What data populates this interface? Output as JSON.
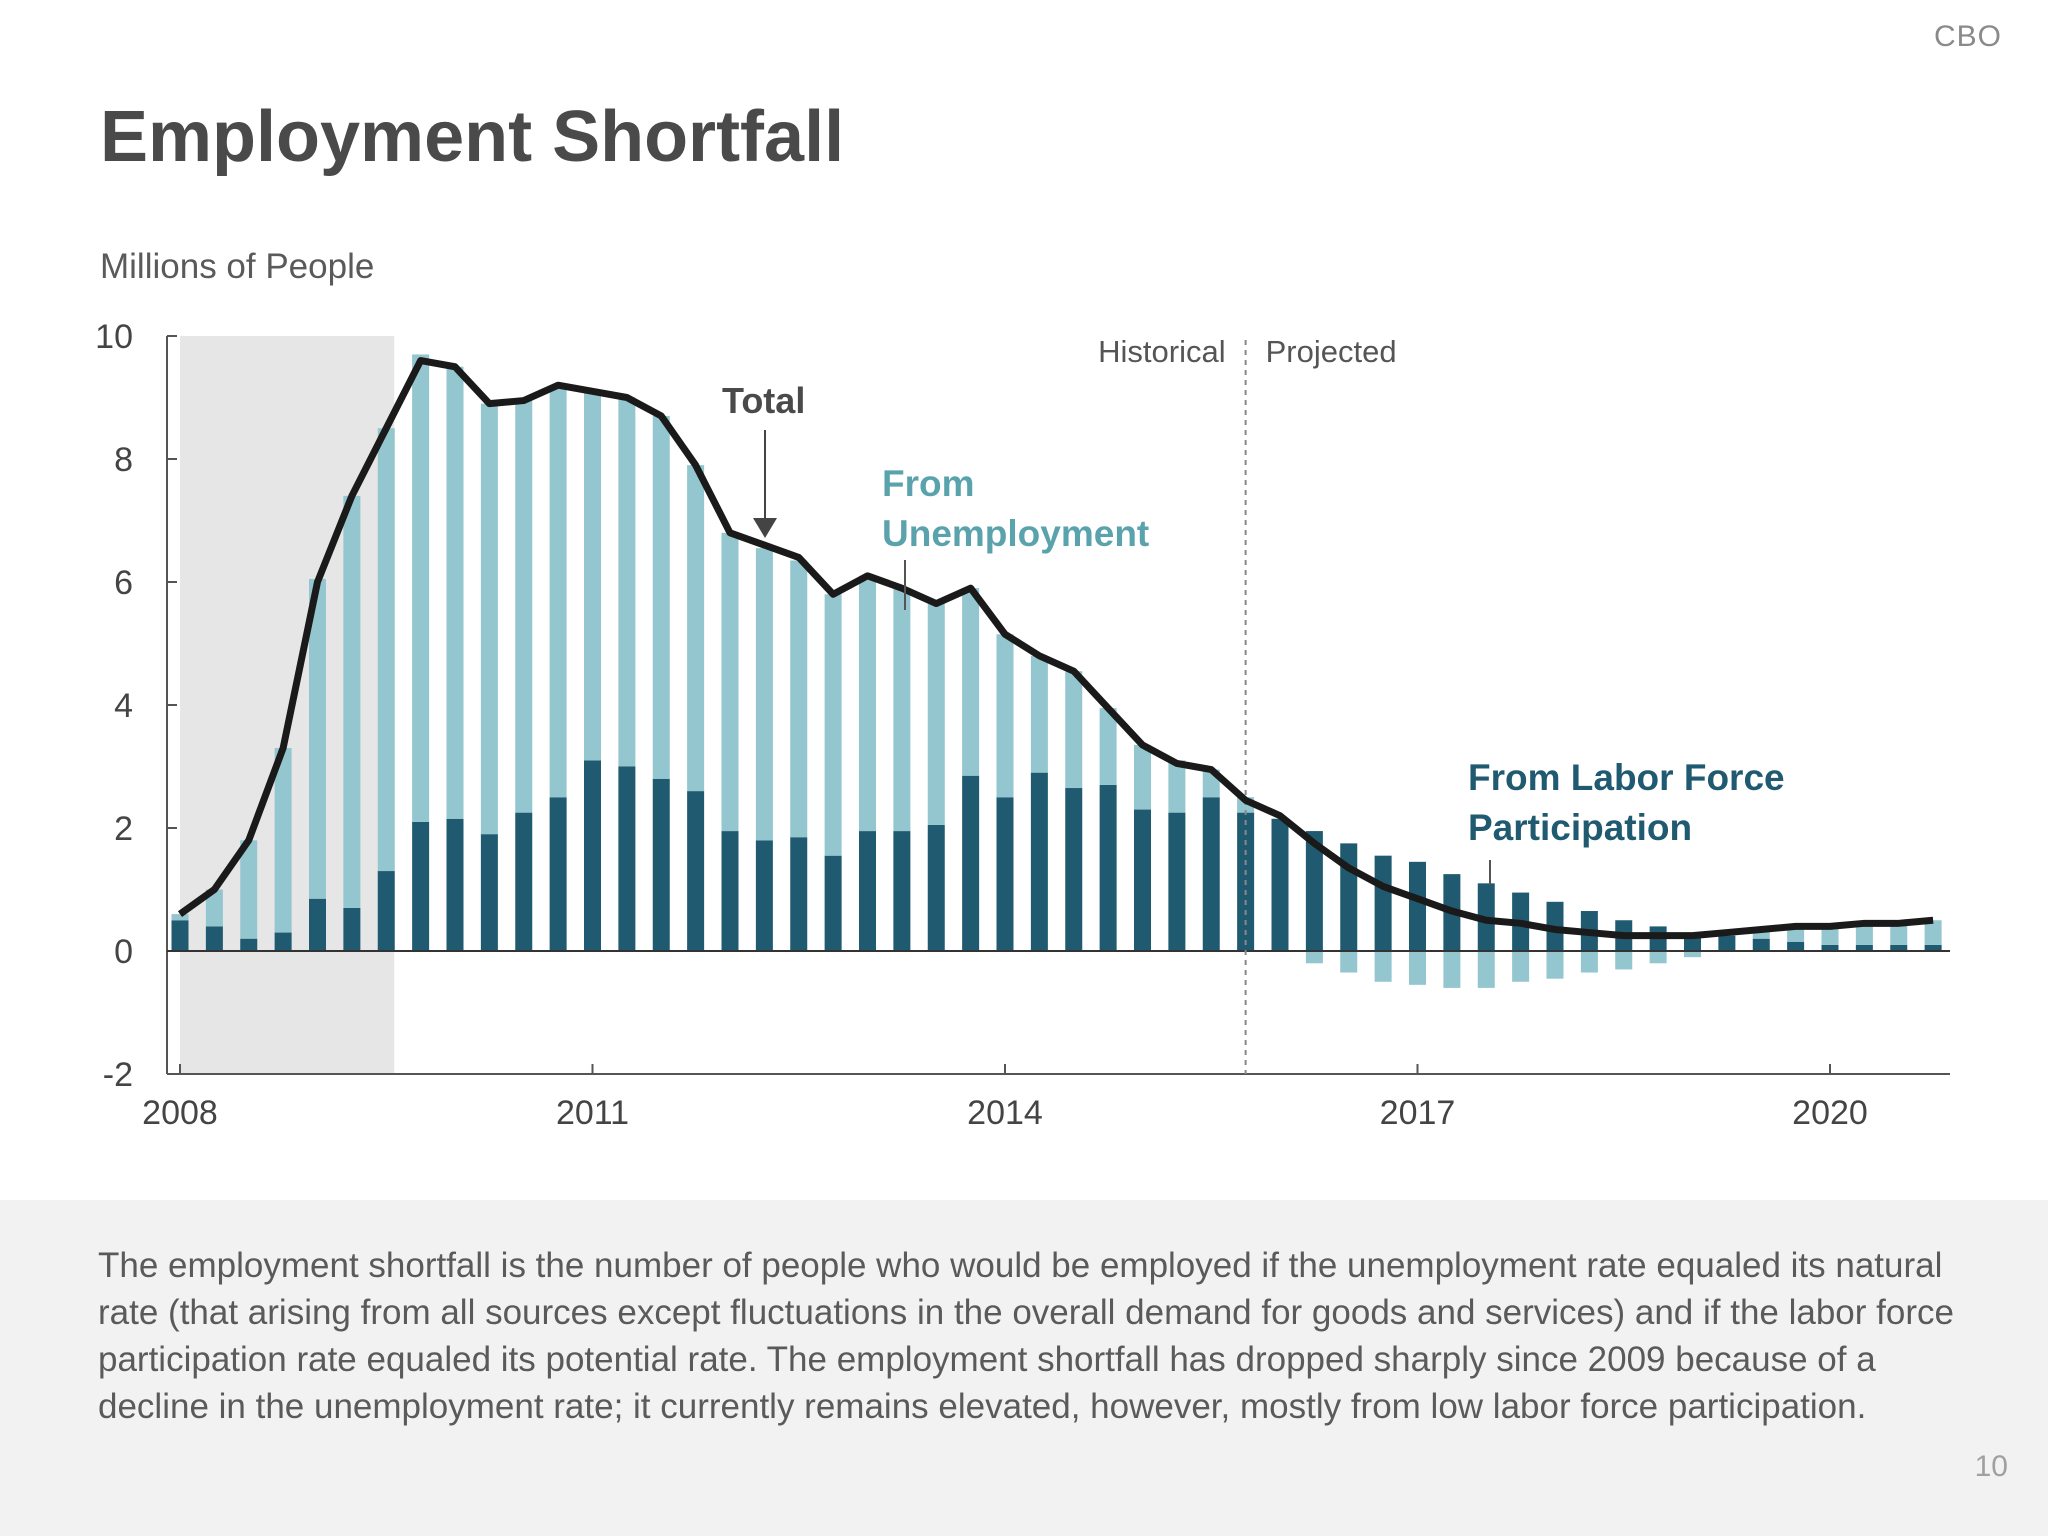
{
  "header": {
    "org": "CBO",
    "title": "Employment Shortfall"
  },
  "caption": "The employment shortfall is the number of people who would be employed if the unemployment rate equaled its natural rate (that arising from all sources except fluctuations in the overall demand for goods and services) and if the labor force participation rate equaled its potential rate. The employment shortfall has dropped sharply since 2009 because of a decline in the unemployment rate; it currently remains elevated, however, mostly from low labor force participation.",
  "page_number": "10",
  "colors": {
    "unemployment": "#93c6cf",
    "labor_force": "#1f5a70",
    "total_line": "#1a1a1a",
    "recession_shade": "#e6e6e6",
    "label_unemployment": "#5aa3ad",
    "label_labor": "#1f5a70"
  },
  "chart_data": {
    "type": "bar",
    "ylabel": "Millions of People",
    "ylim": [
      -2,
      10
    ],
    "yticks": [
      10,
      8,
      6,
      4,
      2,
      0,
      -2
    ],
    "xticks": [
      "2008",
      "2011",
      "2014",
      "2017",
      "2020"
    ],
    "xlim": [
      2008.0,
      2021.0
    ],
    "recession": [
      2008.0,
      2009.5
    ],
    "divider": 2015.75,
    "divider_labels": [
      "Historical",
      "Projected"
    ],
    "annotations": {
      "total": "Total",
      "unemployment": [
        "From",
        "Unemployment"
      ],
      "labor_force": [
        "From Labor Force",
        "Participation"
      ]
    },
    "x": [
      2008.0,
      2008.25,
      2008.5,
      2008.75,
      2009.0,
      2009.25,
      2009.5,
      2009.75,
      2010.0,
      2010.25,
      2010.5,
      2010.75,
      2011.0,
      2011.25,
      2011.5,
      2011.75,
      2012.0,
      2012.25,
      2012.5,
      2012.75,
      2013.0,
      2013.25,
      2013.5,
      2013.75,
      2014.0,
      2014.25,
      2014.5,
      2014.75,
      2015.0,
      2015.25,
      2015.5,
      2015.75,
      2016.0,
      2016.25,
      2016.5,
      2016.75,
      2017.0,
      2017.25,
      2017.5,
      2017.75,
      2018.0,
      2018.25,
      2018.5,
      2018.75,
      2019.0,
      2019.25,
      2019.5,
      2019.75,
      2020.0,
      2020.25,
      2020.5,
      2020.75
    ],
    "series": [
      {
        "name": "From Labor Force Participation",
        "values": [
          0.5,
          0.4,
          0.2,
          0.3,
          0.85,
          0.7,
          1.3,
          2.1,
          2.15,
          1.9,
          2.25,
          2.5,
          3.1,
          3.0,
          2.8,
          2.6,
          1.95,
          1.8,
          1.85,
          1.55,
          1.95,
          1.95,
          2.05,
          2.85,
          2.5,
          2.9,
          2.65,
          2.7,
          2.3,
          2.25,
          2.5,
          2.25,
          2.15,
          1.95,
          1.75,
          1.55,
          1.45,
          1.25,
          1.1,
          0.95,
          0.8,
          0.65,
          0.5,
          0.4,
          0.3,
          0.25,
          0.2,
          0.15,
          0.1,
          0.1,
          0.1,
          0.1
        ]
      },
      {
        "name": "From Unemployment",
        "values": [
          0.1,
          0.6,
          1.6,
          3.0,
          5.2,
          6.7,
          7.2,
          7.6,
          7.35,
          7.0,
          6.7,
          6.7,
          6.0,
          6.0,
          5.9,
          5.3,
          4.85,
          4.75,
          4.5,
          4.25,
          4.15,
          3.95,
          3.6,
          3.05,
          2.65,
          1.9,
          1.9,
          1.25,
          1.05,
          0.85,
          0.45,
          0.25,
          0.0,
          -0.2,
          -0.35,
          -0.5,
          -0.55,
          -0.6,
          -0.6,
          -0.5,
          -0.45,
          -0.35,
          -0.3,
          -0.2,
          -0.1,
          0.05,
          0.15,
          0.25,
          0.3,
          0.35,
          0.35,
          0.4
        ]
      },
      {
        "name": "Total",
        "values": [
          0.6,
          1.0,
          1.8,
          3.3,
          6.0,
          7.4,
          8.5,
          9.6,
          9.5,
          8.9,
          8.95,
          9.2,
          9.1,
          9.0,
          8.7,
          7.9,
          6.8,
          6.6,
          6.4,
          5.8,
          6.1,
          5.9,
          5.65,
          5.9,
          5.15,
          4.8,
          4.55,
          3.95,
          3.35,
          3.05,
          2.95,
          2.45,
          2.2,
          1.75,
          1.35,
          1.05,
          0.85,
          0.65,
          0.5,
          0.45,
          0.35,
          0.3,
          0.25,
          0.25,
          0.25,
          0.3,
          0.35,
          0.4,
          0.4,
          0.45,
          0.45,
          0.5
        ]
      }
    ]
  }
}
